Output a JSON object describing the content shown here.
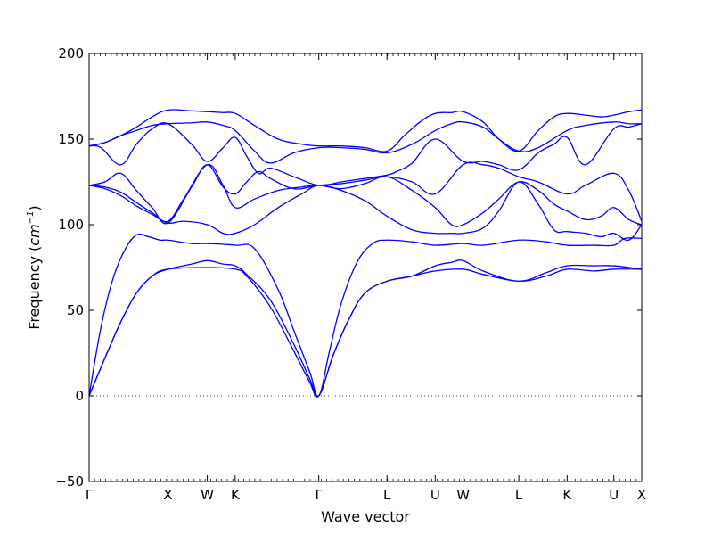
{
  "chart_data": {
    "type": "line",
    "title": "",
    "xlabel": "Wave vector",
    "ylabel_text": "Frequency (",
    "ylabel_unit_base": "cm",
    "ylabel_unit_exp": "−1",
    "ylabel_close": ")",
    "ylim": [
      -50,
      200
    ],
    "yticks": [
      -50,
      0,
      50,
      100,
      150,
      200
    ],
    "ytick_labels": [
      "−50",
      "0",
      "50",
      "100",
      "150",
      "200"
    ],
    "zero_line": true,
    "grid": false,
    "legend": "none",
    "line_color": "#0000ff",
    "k_labels": [
      {
        "label": "Γ",
        "pos": 0.0
      },
      {
        "label": "X",
        "pos": 1.0
      },
      {
        "label": "W",
        "pos": 1.5
      },
      {
        "label": "K",
        "pos": 1.854
      },
      {
        "label": "Γ",
        "pos": 2.915
      },
      {
        "label": "L",
        "pos": 3.781
      },
      {
        "label": "U",
        "pos": 4.393
      },
      {
        "label": "W",
        "pos": 4.747
      },
      {
        "label": "L",
        "pos": 5.454
      },
      {
        "label": "K",
        "pos": 6.067
      },
      {
        "label": "U",
        "pos": 6.66
      },
      {
        "label": "X",
        "pos": 7.014
      }
    ],
    "series": [
      {
        "x": [
          0.0,
          0.2,
          0.4,
          0.6,
          0.8,
          1.0,
          1.5,
          1.854,
          2.0,
          2.3,
          2.6,
          2.8,
          2.915,
          3.1,
          3.3,
          3.5,
          3.781,
          4.1,
          4.393,
          4.747,
          5.0,
          5.454,
          5.8,
          6.067,
          6.4,
          6.66,
          7.014
        ],
        "y": [
          0,
          22,
          43,
          60,
          70,
          74,
          75,
          74,
          70,
          52,
          26,
          8,
          0,
          24,
          45,
          60,
          67,
          70,
          73,
          74,
          71,
          67,
          70,
          74,
          73,
          74,
          74
        ]
      },
      {
        "x": [
          0.0,
          0.2,
          0.4,
          0.6,
          0.8,
          1.0,
          1.3,
          1.5,
          1.7,
          1.854,
          2.0,
          2.3,
          2.6,
          2.8,
          2.915,
          3.1,
          3.3,
          3.5,
          3.781,
          4.1,
          4.393,
          4.6,
          4.747,
          5.0,
          5.454,
          5.8,
          6.067,
          6.4,
          6.66,
          7.014
        ],
        "y": [
          0,
          22,
          43,
          60,
          70,
          74,
          77,
          79,
          77,
          76,
          71,
          56,
          30,
          10,
          0,
          24,
          45,
          60,
          67,
          70,
          76,
          78,
          79,
          73,
          67,
          72,
          76,
          76,
          76,
          74
        ]
      },
      {
        "x": [
          0.0,
          0.15,
          0.3,
          0.45,
          0.6,
          0.75,
          0.9,
          1.0,
          1.3,
          1.5,
          1.854,
          2.1,
          2.4,
          2.6,
          2.8,
          2.915,
          3.05,
          3.2,
          3.4,
          3.6,
          3.781,
          4.1,
          4.393,
          4.747,
          5.0,
          5.454,
          5.8,
          6.067,
          6.4,
          6.66,
          6.8,
          7.014
        ],
        "y": [
          0,
          40,
          68,
          85,
          94,
          93,
          91,
          91,
          89,
          89,
          88,
          86,
          62,
          38,
          14,
          0,
          26,
          54,
          78,
          89,
          91,
          90,
          88,
          89,
          88,
          91,
          90,
          88,
          88,
          88,
          92,
          92
        ]
      },
      {
        "x": [
          0.0,
          0.2,
          0.4,
          0.6,
          0.8,
          1.0,
          1.2,
          1.5,
          1.7,
          1.854,
          2.1,
          2.4,
          2.7,
          2.915,
          3.2,
          3.5,
          3.781,
          4.1,
          4.393,
          4.6,
          4.747,
          5.0,
          5.2,
          5.454,
          5.7,
          5.9,
          6.067,
          6.3,
          6.5,
          6.66,
          6.85,
          7.014
        ],
        "y": [
          123,
          121,
          117,
          111,
          106,
          101,
          102,
          100,
          95,
          95,
          100,
          110,
          118,
          123,
          120,
          114,
          105,
          97,
          95,
          95,
          95,
          98,
          108,
          125,
          112,
          97,
          96,
          95,
          93,
          95,
          91,
          100
        ]
      },
      {
        "x": [
          0.0,
          0.2,
          0.4,
          0.6,
          0.8,
          1.0,
          1.2,
          1.5,
          1.7,
          1.854,
          2.1,
          2.4,
          2.7,
          2.915,
          3.2,
          3.5,
          3.781,
          4.1,
          4.393,
          4.6,
          4.747,
          5.0,
          5.2,
          5.454,
          5.7,
          5.9,
          6.067,
          6.3,
          6.5,
          6.66,
          6.85,
          7.014
        ],
        "y": [
          123,
          122,
          119,
          113,
          107,
          102,
          115,
          135,
          123,
          110,
          115,
          120,
          122,
          123,
          121,
          124,
          128,
          120,
          110,
          100,
          100,
          107,
          115,
          125,
          120,
          112,
          108,
          103,
          105,
          110,
          103,
          100
        ]
      },
      {
        "x": [
          0.0,
          0.2,
          0.4,
          0.6,
          0.8,
          1.0,
          1.3,
          1.5,
          1.7,
          1.854,
          2.0,
          2.15,
          2.3,
          2.6,
          2.915,
          3.2,
          3.5,
          3.781,
          4.1,
          4.393,
          4.747,
          5.0,
          5.2,
          5.454,
          5.7,
          6.067,
          6.3,
          6.66,
          6.85,
          7.014
        ],
        "y": [
          123,
          125,
          130,
          120,
          110,
          101,
          122,
          135,
          122,
          118,
          125,
          131,
          127,
          121,
          123,
          124,
          126,
          128,
          125,
          118,
          135,
          135,
          133,
          128,
          125,
          118,
          123,
          130,
          120,
          102
        ]
      },
      {
        "x": [
          0.0,
          0.15,
          0.4,
          0.6,
          0.8,
          1.0,
          1.3,
          1.5,
          1.7,
          1.854,
          2.0,
          2.15,
          2.3,
          2.6,
          2.915,
          3.2,
          3.5,
          3.781,
          3.9,
          4.1,
          4.393,
          4.747,
          5.0,
          5.2,
          5.454,
          5.7,
          5.9,
          6.067,
          6.3,
          6.66,
          6.85,
          7.014
        ],
        "y": [
          146,
          145,
          135,
          147,
          156,
          159,
          147,
          137,
          145,
          151,
          140,
          130,
          133,
          128,
          123,
          125,
          127,
          129,
          131,
          136,
          150,
          137,
          137,
          135,
          132,
          142,
          147,
          151,
          135,
          156,
          157,
          159
        ]
      },
      {
        "x": [
          0.0,
          0.2,
          0.4,
          0.6,
          0.8,
          1.0,
          1.3,
          1.5,
          1.7,
          1.854,
          2.1,
          2.3,
          2.6,
          2.915,
          3.2,
          3.5,
          3.781,
          4.1,
          4.393,
          4.6,
          4.747,
          5.0,
          5.2,
          5.454,
          5.7,
          6.067,
          6.3,
          6.66,
          6.85,
          7.014
        ],
        "y": [
          146,
          148,
          152,
          155,
          158,
          159,
          159.5,
          160,
          158,
          155,
          143,
          136,
          142,
          145,
          145,
          144,
          142,
          147,
          155,
          159,
          160,
          157,
          150,
          143,
          145,
          155,
          158,
          160,
          159,
          159
        ]
      },
      {
        "x": [
          0.0,
          0.2,
          0.4,
          0.6,
          0.8,
          1.0,
          1.3,
          1.5,
          1.7,
          1.854,
          2.1,
          2.4,
          2.7,
          2.915,
          3.2,
          3.5,
          3.781,
          4.0,
          4.2,
          4.393,
          4.6,
          4.747,
          5.0,
          5.2,
          5.454,
          5.7,
          5.9,
          6.067,
          6.3,
          6.5,
          6.66,
          6.85,
          7.014
        ],
        "y": [
          146,
          148,
          152,
          157,
          163,
          167,
          166.5,
          166,
          165.5,
          165,
          158,
          150,
          147,
          146,
          146,
          145,
          143,
          152,
          160,
          165,
          165.5,
          166,
          160,
          150,
          143,
          155,
          163,
          165,
          164,
          163,
          164,
          166,
          167
        ]
      }
    ]
  }
}
